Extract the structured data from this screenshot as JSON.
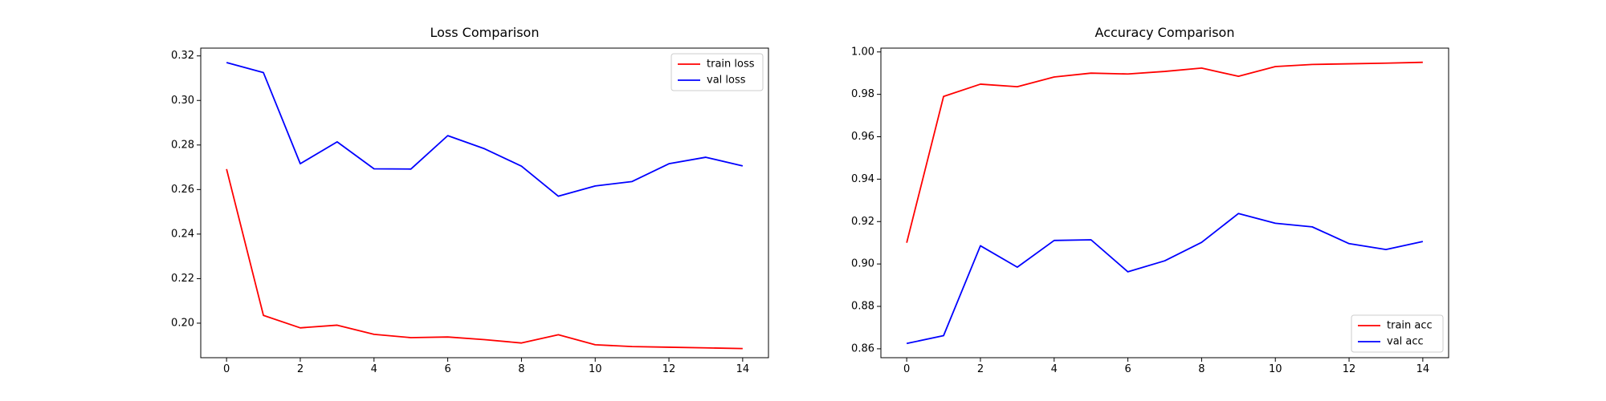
{
  "chart_data": [
    {
      "type": "line",
      "title": "Loss Comparison",
      "xlabel": "",
      "ylabel": "",
      "x": [
        0,
        1,
        2,
        3,
        4,
        5,
        6,
        7,
        8,
        9,
        10,
        11,
        12,
        13,
        14
      ],
      "xlim": [
        -0.7,
        14.7
      ],
      "ylim": [
        0.1845,
        0.3235
      ],
      "xticks": [
        0,
        2,
        4,
        6,
        8,
        10,
        12,
        14
      ],
      "xtick_labels": [
        "0",
        "2",
        "4",
        "6",
        "8",
        "10",
        "12",
        "14"
      ],
      "yticks": [
        0.2,
        0.22,
        0.24,
        0.26,
        0.28,
        0.3,
        0.32
      ],
      "ytick_labels": [
        "0.20",
        "0.22",
        "0.24",
        "0.26",
        "0.28",
        "0.30",
        "0.32"
      ],
      "grid": false,
      "legend_position": "top-right",
      "series": [
        {
          "name": "train loss",
          "color": "#ff0000",
          "values": [
            0.2692,
            0.2035,
            0.1979,
            0.1991,
            0.195,
            0.1935,
            0.1938,
            0.1926,
            0.1911,
            0.1948,
            0.1903,
            0.1895,
            0.1892,
            0.1889,
            0.1886
          ]
        },
        {
          "name": "val loss",
          "color": "#0000ff",
          "values": [
            0.317,
            0.3125,
            0.2716,
            0.2814,
            0.2693,
            0.2692,
            0.2842,
            0.2783,
            0.2705,
            0.257,
            0.2616,
            0.2636,
            0.2716,
            0.2745,
            0.2706
          ]
        }
      ]
    },
    {
      "type": "line",
      "title": "Accuracy Comparison",
      "xlabel": "",
      "ylabel": "",
      "x": [
        0,
        1,
        2,
        3,
        4,
        5,
        6,
        7,
        8,
        9,
        10,
        11,
        12,
        13,
        14
      ],
      "xlim": [
        -0.7,
        14.7
      ],
      "ylim": [
        0.8558,
        1.0018
      ],
      "xticks": [
        0,
        2,
        4,
        6,
        8,
        10,
        12,
        14
      ],
      "xtick_labels": [
        "0",
        "2",
        "4",
        "6",
        "8",
        "10",
        "12",
        "14"
      ],
      "yticks": [
        0.86,
        0.88,
        0.9,
        0.92,
        0.94,
        0.96,
        0.98,
        1.0
      ],
      "ytick_labels": [
        "0.86",
        "0.88",
        "0.90",
        "0.92",
        "0.94",
        "0.96",
        "0.98",
        "1.00"
      ],
      "grid": false,
      "legend_position": "bottom-right",
      "series": [
        {
          "name": "train acc",
          "color": "#ff0000",
          "values": [
            0.91,
            0.979,
            0.9848,
            0.9836,
            0.9882,
            0.99,
            0.9896,
            0.9908,
            0.9924,
            0.9885,
            0.9931,
            0.9941,
            0.9944,
            0.9947,
            0.9951
          ]
        },
        {
          "name": "val acc",
          "color": "#0000ff",
          "values": [
            0.8625,
            0.8662,
            0.9086,
            0.8985,
            0.9111,
            0.9114,
            0.8963,
            0.9015,
            0.9102,
            0.9238,
            0.9192,
            0.9175,
            0.9096,
            0.9068,
            0.9106
          ]
        }
      ]
    }
  ]
}
